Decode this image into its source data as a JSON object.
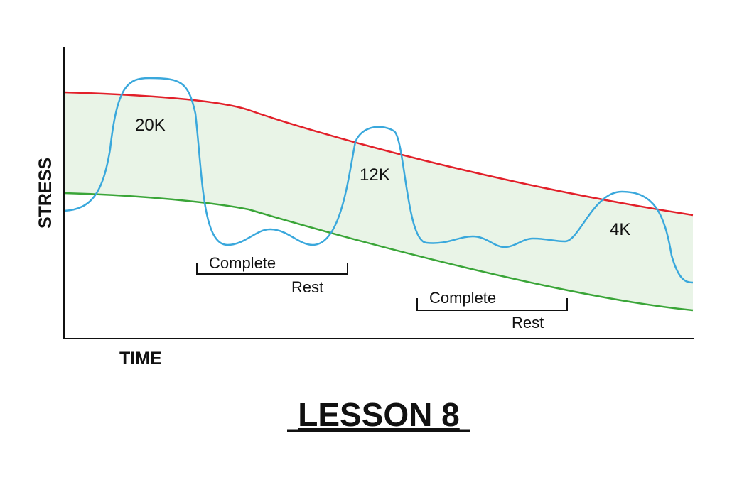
{
  "title": "LESSON 8",
  "axes": {
    "y_label": "STRESS",
    "x_label": "TIME"
  },
  "peaks": [
    {
      "label": "20K"
    },
    {
      "label": "12K"
    },
    {
      "label": "4K"
    }
  ],
  "rest_periods": [
    {
      "label_top": "Complete",
      "label_bottom": "Rest"
    },
    {
      "label_top": "Complete",
      "label_bottom": "Rest"
    }
  ]
}
